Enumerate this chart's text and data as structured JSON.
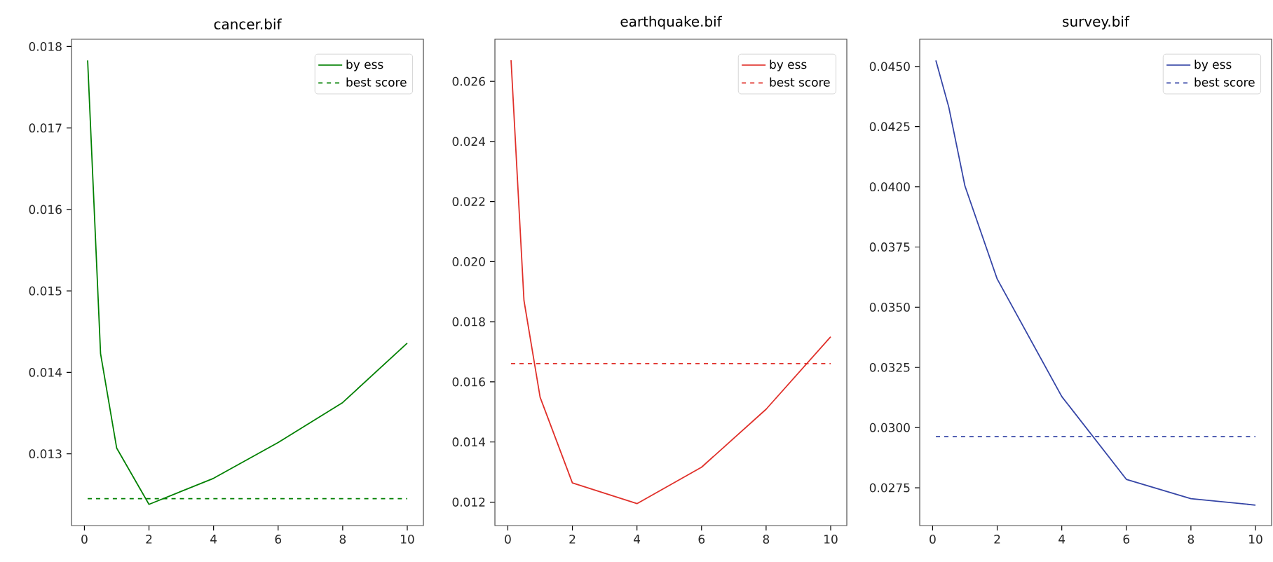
{
  "chart_data": [
    {
      "type": "line",
      "title": "cancer.bif",
      "x": [
        0.1,
        0.5,
        1,
        2,
        4,
        6,
        8,
        10
      ],
      "xlim": [
        -0.4,
        10.5
      ],
      "xticks": [
        0,
        2,
        4,
        6,
        8,
        10
      ],
      "ylim": [
        0.01212,
        0.01809
      ],
      "yticks": [
        {
          "value": 0.013,
          "label": "0.013"
        },
        {
          "value": 0.014,
          "label": "0.014"
        },
        {
          "value": 0.015,
          "label": "0.015"
        },
        {
          "value": 0.016,
          "label": "0.016"
        },
        {
          "value": 0.017,
          "label": "0.017"
        },
        {
          "value": 0.018,
          "label": "0.018"
        }
      ],
      "legend": "top right",
      "marker": "none",
      "series": [
        {
          "name": "by ess",
          "color": "#008000",
          "line_style": "solid",
          "values": [
            0.01783,
            0.01423,
            0.01307,
            0.01238,
            0.0127,
            0.01314,
            0.01363,
            0.01436
          ]
        },
        {
          "name": "best score",
          "color": "#008000",
          "line_style": "dashed",
          "values": [
            0.01245,
            0.01245,
            0.01245,
            0.01245,
            0.01245,
            0.01245,
            0.01245,
            0.01245
          ]
        }
      ]
    },
    {
      "type": "line",
      "title": "earthquake.bif",
      "x": [
        0.1,
        0.5,
        1,
        2,
        4,
        6,
        8,
        10
      ],
      "xlim": [
        -0.4,
        10.5
      ],
      "xticks": [
        0,
        2,
        4,
        6,
        8,
        10
      ],
      "ylim": [
        0.01122,
        0.0274
      ],
      "yticks": [
        {
          "value": 0.012,
          "label": "0.012"
        },
        {
          "value": 0.014,
          "label": "0.014"
        },
        {
          "value": 0.016,
          "label": "0.016"
        },
        {
          "value": 0.018,
          "label": "0.018"
        },
        {
          "value": 0.02,
          "label": "0.020"
        },
        {
          "value": 0.022,
          "label": "0.022"
        },
        {
          "value": 0.024,
          "label": "0.024"
        },
        {
          "value": 0.026,
          "label": "0.026"
        }
      ],
      "legend": "top right",
      "marker": "none",
      "series": [
        {
          "name": "by ess",
          "color": "#e0302a",
          "line_style": "solid",
          "values": [
            0.0267,
            0.01871,
            0.01549,
            0.01264,
            0.01195,
            0.01316,
            0.01509,
            0.0175
          ]
        },
        {
          "name": "best score",
          "color": "#e0302a",
          "line_style": "dashed",
          "values": [
            0.01661,
            0.01661,
            0.01661,
            0.01661,
            0.01661,
            0.01661,
            0.01661,
            0.01661
          ]
        }
      ]
    },
    {
      "type": "line",
      "title": "survey.bif",
      "x": [
        0.1,
        0.5,
        1,
        2,
        4,
        6,
        8,
        10
      ],
      "xlim": [
        -0.4,
        10.5
      ],
      "xticks": [
        0,
        2,
        4,
        6,
        8,
        10
      ],
      "ylim": [
        0.02593,
        0.04613
      ],
      "yticks": [
        {
          "value": 0.0275,
          "label": "0.0275"
        },
        {
          "value": 0.03,
          "label": "0.0300"
        },
        {
          "value": 0.0325,
          "label": "0.0325"
        },
        {
          "value": 0.035,
          "label": "0.0350"
        },
        {
          "value": 0.0375,
          "label": "0.0375"
        },
        {
          "value": 0.04,
          "label": "0.0400"
        },
        {
          "value": 0.0425,
          "label": "0.0425"
        },
        {
          "value": 0.045,
          "label": "0.0450"
        }
      ],
      "legend": "top right",
      "marker": "none",
      "series": [
        {
          "name": "by ess",
          "color": "#3545a6",
          "line_style": "solid",
          "values": [
            0.04525,
            0.04331,
            0.04004,
            0.03617,
            0.03129,
            0.02785,
            0.02705,
            0.02678
          ]
        },
        {
          "name": "best score",
          "color": "#3545a6",
          "line_style": "dashed",
          "values": [
            0.02962,
            0.02962,
            0.02962,
            0.02962,
            0.02962,
            0.02962,
            0.02962,
            0.02962
          ]
        }
      ]
    }
  ]
}
